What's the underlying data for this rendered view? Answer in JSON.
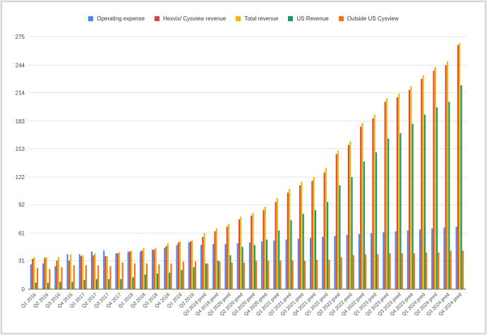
{
  "chart_data": {
    "type": "bar",
    "legend_position": "top",
    "grid": true,
    "ylim": [
      0,
      275
    ],
    "yticks": [
      0,
      31,
      61,
      92,
      122,
      153,
      183,
      214,
      244,
      275
    ],
    "categories": [
      "Q1 2016",
      "Q2 2016",
      "Q3 2016",
      "Q4 2016",
      "Q1 2017",
      "Q2 2017",
      "Q3 2017",
      "Q4 2017",
      "Q1 2018",
      "Q2 2018",
      "Q3 2018",
      "Q4 2018",
      "Q1 2019",
      "Q2 2019",
      "Q3 2019 pred",
      "Q4 2019 pred",
      "Q1 2020 pred",
      "Q2 2020 pred",
      "Q3 2020 pred",
      "Q4 2020 pred",
      "Q1 2021 pred",
      "Q2 2021 pred",
      "Q3 2021 pred",
      "Q4 2021 pred",
      "Q1 2022 pred",
      "Q2 2022 pred",
      "Q3 2022 pred",
      "Q4 2022 pred",
      "Q1 2023 pred",
      "Q2 2023 pred",
      "Q3 2023 pred",
      "Q4 2023 pred",
      "Q1 2024 pred",
      "Q2 2024 pred",
      "Q3 2024 pred",
      "Q4 2024 pred"
    ],
    "series": [
      {
        "name": "Operating expense",
        "color": "#4285f4",
        "values": [
          27,
          28,
          25,
          38,
          38,
          41,
          42,
          39,
          41,
          41,
          43,
          45,
          48,
          51,
          48,
          49,
          49,
          50,
          51,
          52,
          53,
          54,
          55,
          56,
          57,
          58,
          59,
          60,
          61,
          62,
          63,
          64,
          65,
          66,
          67,
          68
        ]
      },
      {
        "name": "Hexvix/ Cysview revenue",
        "color": "#db4437",
        "values": [
          33,
          34,
          31,
          31,
          36,
          37,
          36,
          39,
          41,
          42,
          43,
          47,
          51,
          52,
          57,
          63,
          68,
          76,
          80,
          86,
          95,
          105,
          113,
          118,
          127,
          147,
          157,
          177,
          186,
          204,
          209,
          217,
          229,
          238,
          244,
          266
        ]
      },
      {
        "name": "Total revenue",
        "color": "#f4b400",
        "values": [
          35,
          35,
          35,
          38,
          37,
          39,
          36,
          40,
          42,
          45,
          45,
          50,
          52,
          53,
          61,
          66,
          71,
          79,
          83,
          90,
          99,
          109,
          117,
          122,
          132,
          151,
          161,
          181,
          190,
          208,
          213,
          221,
          233,
          242,
          248,
          268
        ]
      },
      {
        "name": "US Revenue",
        "color": "#0f9d58",
        "values": [
          7,
          7,
          8,
          8,
          10,
          11,
          11,
          11,
          13,
          16,
          17,
          18,
          21,
          24,
          28,
          31,
          37,
          46,
          48,
          54,
          64,
          75,
          82,
          86,
          95,
          113,
          122,
          139,
          149,
          164,
          170,
          180,
          190,
          198,
          204,
          222
        ]
      },
      {
        "name": "Outside US Cysview",
        "color": "#ff6d01",
        "values": [
          23,
          22,
          24,
          26,
          26,
          26,
          25,
          29,
          28,
          28,
          27,
          28,
          30,
          30,
          28,
          30,
          29,
          29,
          31,
          31,
          31,
          31,
          31,
          32,
          32,
          35,
          37,
          38,
          38,
          39,
          39,
          39,
          40,
          40,
          42,
          42
        ]
      }
    ]
  }
}
